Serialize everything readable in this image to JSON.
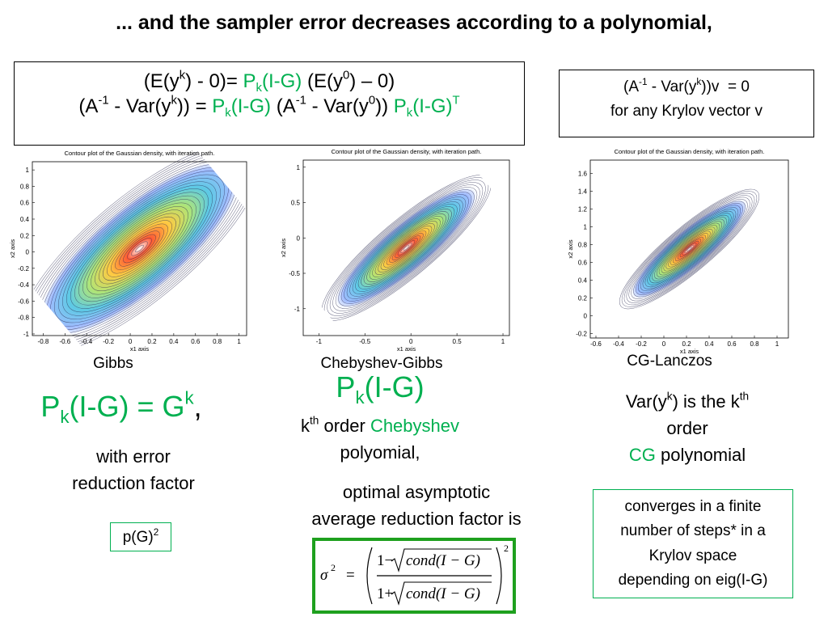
{
  "title": "... and the sampler error decreases according to a polynomial,",
  "main_box": {
    "lines": [
      [
        {
          "text": "(E(y"
        },
        {
          "text": "k",
          "script": "sup"
        },
        {
          "text": ") - 0)= "
        },
        {
          "text": "P",
          "color": "#00b050"
        },
        {
          "text": "k",
          "script": "sub",
          "color": "#00b050"
        },
        {
          "text": "(I-G)",
          "color": "#00b050"
        },
        {
          "text": " (E(y"
        },
        {
          "text": "0",
          "script": "sup"
        },
        {
          "text": ") – 0)"
        }
      ],
      [
        {
          "text": "(A"
        },
        {
          "text": "-1",
          "script": "sup"
        },
        {
          "text": " - Var(y"
        },
        {
          "text": "k",
          "script": "sup"
        },
        {
          "text": ")) = "
        },
        {
          "text": "P",
          "color": "#00b050"
        },
        {
          "text": "k",
          "script": "sub",
          "color": "#00b050"
        },
        {
          "text": "(I-G)",
          "color": "#00b050"
        },
        {
          "text": " (A"
        },
        {
          "text": "-1",
          "script": "sup"
        },
        {
          "text": " - Var(y"
        },
        {
          "text": "0",
          "script": "sup"
        },
        {
          "text": ")) "
        },
        {
          "text": "P",
          "color": "#00b050"
        },
        {
          "text": "k",
          "script": "sub",
          "color": "#00b050"
        },
        {
          "text": "(I-G)",
          "color": "#00b050"
        },
        {
          "text": "T",
          "script": "sup",
          "color": "#00b050"
        }
      ]
    ]
  },
  "krylov_box": {
    "lines": [
      [
        {
          "text": "(A"
        },
        {
          "text": "-1",
          "script": "sup"
        },
        {
          "text": " - Var(y"
        },
        {
          "text": "k",
          "script": "sup"
        },
        {
          "text": "))v  = 0"
        }
      ],
      [
        {
          "text": "for any Krylov vector v"
        }
      ]
    ]
  },
  "plots": [
    {
      "title": "Contour plot of the Gaussian density, with iteration path.",
      "xlabel": "x1 axis",
      "ylabel": "x2 axis",
      "xlim": [
        -0.9,
        1.07
      ],
      "ylim": [
        -1.02,
        1.1
      ],
      "xticks": [
        -0.8,
        -0.6,
        -0.4,
        -0.2,
        0,
        0.2,
        0.4,
        0.6,
        0.8,
        1
      ],
      "yticks": [
        -1,
        -0.8,
        -0.6,
        -0.4,
        -0.2,
        0,
        0.2,
        0.4,
        0.6,
        0.8,
        1
      ],
      "caption": "Gibbs"
    },
    {
      "title": "Contour plot of the Gaussian density, with iteration path.",
      "xlabel": "x1 axis",
      "ylabel": "x2 axis",
      "xlim": [
        -1.17,
        1.07
      ],
      "ylim": [
        -1.38,
        1.1
      ],
      "xticks": [
        -1,
        -0.5,
        0,
        0.5,
        1
      ],
      "yticks": [
        -1,
        -0.5,
        0,
        0.5,
        1
      ],
      "caption": "Chebyshev-Gibbs"
    },
    {
      "title": "Contour plot of the Gaussian density, with iteration path.",
      "xlabel": "x1 axis",
      "ylabel": "x2 axis",
      "xlim": [
        -0.65,
        1.1
      ],
      "ylim": [
        -0.25,
        1.75
      ],
      "xticks": [
        -0.6,
        -0.4,
        -0.2,
        0,
        0.2,
        0.4,
        0.6,
        0.8,
        1
      ],
      "yticks": [
        -0.2,
        0,
        0.2,
        0.4,
        0.6,
        0.8,
        1,
        1.2,
        1.4,
        1.6
      ],
      "caption": "CG-Lanczos"
    }
  ],
  "gibbs": {
    "formula": {
      "lines": [
        [
          {
            "text": "P",
            "color": "#00b050"
          },
          {
            "text": "k",
            "script": "sub",
            "color": "#00b050"
          },
          {
            "text": "(I-G) = G",
            "color": "#00b050"
          },
          {
            "text": "k",
            "script": "sup",
            "color": "#00b050"
          },
          {
            "text": ","
          }
        ]
      ]
    },
    "text": {
      "lines": [
        [
          {
            "text": "with error"
          }
        ],
        [
          {
            "text": "reduction factor"
          }
        ]
      ]
    },
    "box": {
      "lines": [
        [
          {
            "text": "p(G)"
          },
          {
            "text": "2",
            "script": "sup"
          }
        ]
      ]
    }
  },
  "chebyshev": {
    "formula": {
      "lines": [
        [
          {
            "text": "P",
            "color": "#00b050"
          },
          {
            "text": "k",
            "script": "sub",
            "color": "#00b050"
          },
          {
            "text": "(I-G)",
            "color": "#00b050"
          }
        ]
      ]
    },
    "text": {
      "lines": [
        [
          {
            "text": "k"
          },
          {
            "text": "th",
            "script": "sup"
          },
          {
            "text": " order "
          },
          {
            "text": "Chebyshev",
            "color": "#00b050"
          }
        ],
        [
          {
            "text": "polyomial,"
          }
        ]
      ]
    },
    "text2": {
      "lines": [
        [
          {
            "text": "optimal asymptotic"
          }
        ],
        [
          {
            "text": "average reduction factor is"
          }
        ]
      ]
    },
    "sigma": {
      "lhs": "σ",
      "lhs_exp": "2",
      "eq": "=",
      "num_a": "1−",
      "num_b": "cond(I − G)",
      "den_a": "1+",
      "den_b": "cond(I − G)",
      "exp": "2"
    }
  },
  "cg": {
    "text": {
      "lines": [
        [
          {
            "text": "Var(y"
          },
          {
            "text": "k",
            "script": "sup"
          },
          {
            "text": ") is the k"
          },
          {
            "text": "th",
            "script": "sup"
          }
        ],
        [
          {
            "text": "order"
          }
        ],
        [
          {
            "text": "CG",
            "color": "#00b050"
          },
          {
            "text": " polynomial"
          }
        ]
      ]
    },
    "box": {
      "lines": [
        [
          {
            "text": "converges in a finite"
          }
        ],
        [
          {
            "text": "number of steps* in a"
          }
        ],
        [
          {
            "text": "Krylov space"
          }
        ],
        [
          {
            "text": "depending on eig(I-G)"
          }
        ]
      ]
    }
  }
}
